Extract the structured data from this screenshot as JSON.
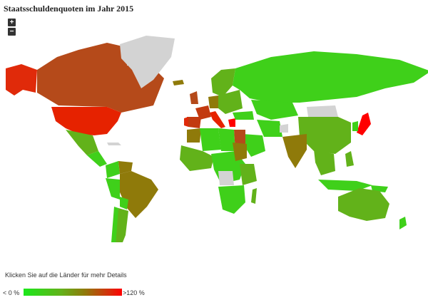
{
  "title": "Staatsschuldenquoten im Jahr 2015",
  "zoom": {
    "in_label": "+",
    "out_label": "−"
  },
  "hint": "Klicken Sie auf die Länder für mehr Details",
  "legend": {
    "min_label": "< 0 %",
    "max_label": ">120 %"
  },
  "colors": {
    "low": "#1be81b",
    "mid": "#8f7a0a",
    "high": "#ff0000",
    "no_data": "#d3d3d3"
  }
}
